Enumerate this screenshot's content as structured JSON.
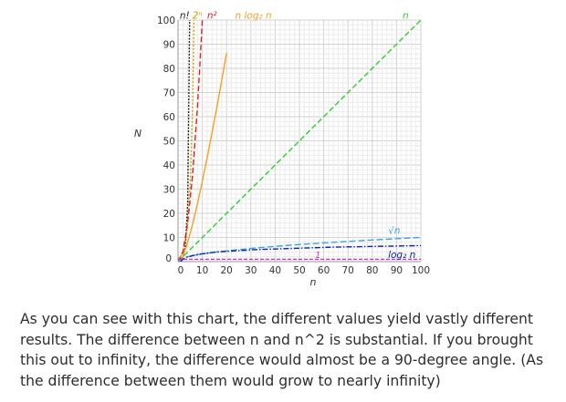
{
  "chart_data": {
    "type": "line",
    "title": "",
    "xlabel": "n",
    "ylabel": "N",
    "xlim": [
      0,
      100
    ],
    "ylim": [
      0,
      100
    ],
    "grid": true,
    "x_ticks": [
      "0",
      "10",
      "20",
      "30",
      "40",
      "50",
      "60",
      "70",
      "80",
      "90",
      "100"
    ],
    "y_ticks": [
      "0",
      "10",
      "20",
      "30",
      "40",
      "50",
      "60",
      "70",
      "80",
      "90",
      "100"
    ],
    "series": [
      {
        "name": "n!",
        "color": "#222222",
        "dash": "2,1.5",
        "x": [
          0,
          1,
          2,
          3,
          4,
          5
        ],
        "y": [
          1,
          1,
          2,
          6,
          24,
          120
        ]
      },
      {
        "name": "2ⁿ",
        "color": "#c8a000",
        "dash": "2,2",
        "x": [
          0,
          1,
          2,
          3,
          4,
          5,
          6,
          7
        ],
        "y": [
          1,
          2,
          4,
          8,
          16,
          32,
          64,
          128
        ]
      },
      {
        "name": "n²",
        "color": "#e02020",
        "dash": "6,3",
        "x": [
          0,
          2,
          4,
          6,
          8,
          9,
          10,
          11
        ],
        "y": [
          0,
          4,
          16,
          36,
          64,
          81,
          100,
          121
        ]
      },
      {
        "name": "n log₂ n",
        "color": "#f5a020",
        "dash": "",
        "x": [
          1,
          2,
          4,
          6,
          8,
          10,
          12,
          14,
          16,
          18,
          20
        ],
        "y": [
          0,
          2,
          8,
          15.5,
          24,
          33.2,
          43,
          53.3,
          64,
          75.1,
          86.4
        ]
      },
      {
        "name": "n",
        "color": "#33cc33",
        "dash": "6,3",
        "x": [
          0,
          100
        ],
        "y": [
          0,
          100
        ]
      },
      {
        "name": "√n",
        "color": "#3aa8d8",
        "dash": "7,3",
        "x": [
          0,
          1,
          4,
          9,
          16,
          25,
          36,
          49,
          64,
          81,
          100
        ],
        "y": [
          0,
          1,
          2,
          3,
          4,
          5,
          6,
          7,
          8,
          9,
          10
        ]
      },
      {
        "name": "log₂ n",
        "color": "#1020b0",
        "dash": "6,2,1.5,2",
        "x": [
          1,
          2,
          4,
          8,
          16,
          32,
          64,
          100
        ],
        "y": [
          0,
          1,
          2,
          3,
          4,
          5,
          6,
          6.64
        ]
      },
      {
        "name": "1",
        "color": "#cc33cc",
        "dash": "4,2",
        "x": [
          0,
          100
        ],
        "y": [
          1,
          1
        ]
      }
    ]
  },
  "caption": "As you can see with this chart, the different values yield vastly different results. The difference between n and n^2 is substantial. If you brought this out to infinity, the difference would almost be a 90-degree angle. (As the difference between them would grow to nearly infinity)"
}
